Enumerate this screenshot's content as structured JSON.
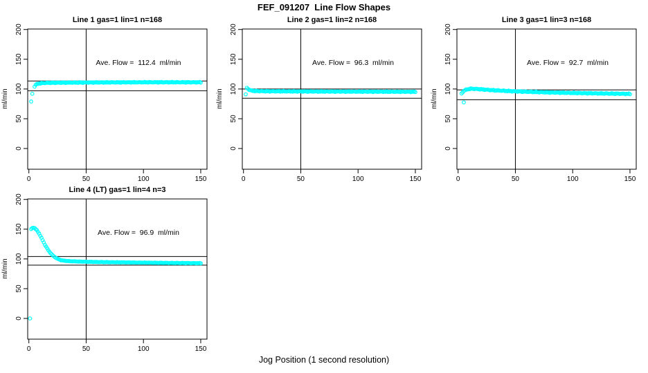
{
  "title": "FEF_091207  Line Flow Shapes",
  "xlabel": "Jog Position (1 second resolution)",
  "colors": {
    "point": "#00FFFF",
    "line": "#000000",
    "background": "#FFFFFF"
  },
  "axes": {
    "ylabel": "ml/min",
    "x_ticks": [
      0,
      50,
      100,
      150
    ],
    "y_ticks": [
      0,
      50,
      100,
      150,
      200
    ],
    "xlim": [
      0,
      150
    ],
    "ylim": [
      0,
      200
    ],
    "grid": false
  },
  "chart_data": [
    {
      "type": "scatter",
      "title": "Line 1 gas=1 lin=1 n=168",
      "annotation": "Ave. Flow =  112.4  ml/min",
      "ave_flow_ml_min": 112.4,
      "gas": 1,
      "lin": 1,
      "n": 168,
      "vline_x": 50,
      "hlines": [
        113.5,
        97
      ],
      "outlier_points": [
        [
          2,
          79
        ],
        [
          3,
          92
        ]
      ],
      "profile_keypoints": [
        [
          5,
          104
        ],
        [
          6,
          107
        ],
        [
          8,
          109
        ],
        [
          12,
          110
        ],
        [
          20,
          110.5
        ],
        [
          60,
          111
        ],
        [
          100,
          111.3
        ],
        [
          150,
          111.3
        ]
      ],
      "x_step": 1,
      "jitter": 0.7
    },
    {
      "type": "scatter",
      "title": "Line 2 gas=1 lin=2 n=168",
      "annotation": "Ave. Flow =  96.3  ml/min",
      "ave_flow_ml_min": 96.3,
      "gas": 1,
      "lin": 2,
      "n": 168,
      "vline_x": 50,
      "hlines": [
        100,
        84.5
      ],
      "outlier_points": [
        [
          2,
          91
        ]
      ],
      "profile_keypoints": [
        [
          3,
          102
        ],
        [
          4,
          100.5
        ],
        [
          5,
          98.5
        ],
        [
          7,
          97.3
        ],
        [
          10,
          96.6
        ],
        [
          20,
          96.2
        ],
        [
          60,
          95.8
        ],
        [
          100,
          95.6
        ],
        [
          150,
          95.3
        ]
      ],
      "x_step": 1,
      "jitter": 0.7
    },
    {
      "type": "scatter",
      "title": "Line 3 gas=1 lin=3 n=168",
      "annotation": "Ave. Flow =  92.7  ml/min",
      "ave_flow_ml_min": 92.7,
      "gas": 1,
      "lin": 3,
      "n": 168,
      "vline_x": 50,
      "hlines": [
        98.5,
        82
      ],
      "outlier_points": [
        [
          5,
          77.5
        ]
      ],
      "profile_keypoints": [
        [
          3,
          92.5
        ],
        [
          5,
          97
        ],
        [
          8,
          99.5
        ],
        [
          12,
          100.5
        ],
        [
          18,
          99.8
        ],
        [
          30,
          98
        ],
        [
          50,
          96
        ],
        [
          80,
          94.2
        ],
        [
          110,
          93
        ],
        [
          150,
          91.8
        ]
      ],
      "x_step": 1,
      "jitter": 0.8
    },
    {
      "type": "scatter",
      "title": "Line 4 (LT) gas=1 lin=4 n=3",
      "annotation": "Ave. Flow =  96.9  ml/min",
      "ave_flow_ml_min": 96.9,
      "gas": 1,
      "lin": 4,
      "n": 3,
      "vline_x": 50,
      "hlines": [
        104,
        89.5
      ],
      "outlier_points": [
        [
          1,
          0
        ]
      ],
      "profile_keypoints": [
        [
          2,
          150
        ],
        [
          3,
          152
        ],
        [
          4,
          152.5
        ],
        [
          5,
          152
        ],
        [
          6,
          150
        ],
        [
          7,
          148
        ],
        [
          8,
          145.5
        ],
        [
          9,
          142.5
        ],
        [
          10,
          139
        ],
        [
          12,
          131.5
        ],
        [
          14,
          124
        ],
        [
          16,
          117.5
        ],
        [
          18,
          112
        ],
        [
          20,
          107.5
        ],
        [
          22,
          104
        ],
        [
          24,
          101.3
        ],
        [
          26,
          99.3
        ],
        [
          28,
          98
        ],
        [
          30,
          97.2
        ],
        [
          35,
          96.2
        ],
        [
          45,
          95.5
        ],
        [
          60,
          94.8
        ],
        [
          90,
          94
        ],
        [
          120,
          93.3
        ],
        [
          150,
          92.8
        ]
      ],
      "x_step": 1,
      "jitter": 0.4
    }
  ]
}
